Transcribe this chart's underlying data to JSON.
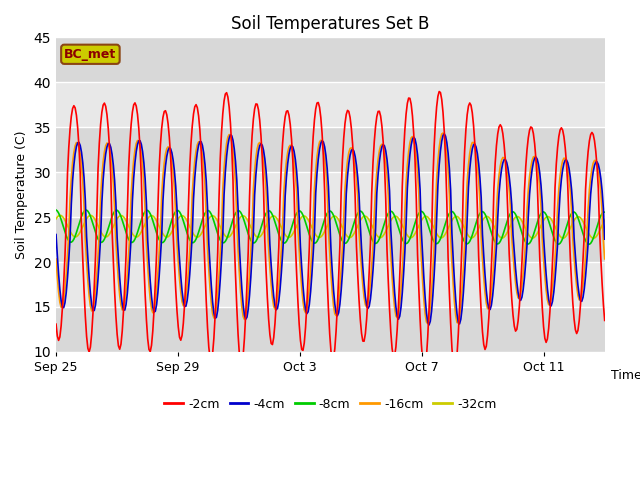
{
  "title": "Soil Temperatures Set B",
  "xlabel": "Time",
  "ylabel": "Soil Temperature (C)",
  "ylim": [
    10,
    45
  ],
  "n_days": 18,
  "hrs_per_day": 24,
  "xtick_positions_days": [
    0,
    4,
    8,
    12,
    16
  ],
  "xtick_labels": [
    "Sep 25",
    "Sep 29",
    "Oct 3",
    "Oct 7",
    "Oct 11"
  ],
  "legend_labels": [
    "-2cm",
    "-4cm",
    "-8cm",
    "-16cm",
    "-32cm"
  ],
  "color_2cm": "#ff0000",
  "color_4cm": "#0000cc",
  "color_8cm": "#00cc00",
  "color_16cm": "#ff9900",
  "color_32cm": "#cccc00",
  "annotation_text": "BC_met",
  "annotation_facecolor": "#cccc00",
  "annotation_edgecolor": "#8B4513",
  "annotation_textcolor": "#8B0000",
  "bg_color": "#d8d8d8",
  "grid_color": "#ffffff",
  "band_color_light": "#e8e8e8",
  "band_color_dark": "#d0d0d0",
  "line_width": 1.2,
  "base_temp": 24.0,
  "amp_2cm": 14.0,
  "amp_4cm": 10.0,
  "amp_8cm": 1.8,
  "amp_16cm": 10.0,
  "amp_32cm": 1.2,
  "phase_shift_4cm": 0.15,
  "phase_shift_8cm": 0.4,
  "phase_shift_16cm": 0.1,
  "phase_shift_32cm": 0.55
}
